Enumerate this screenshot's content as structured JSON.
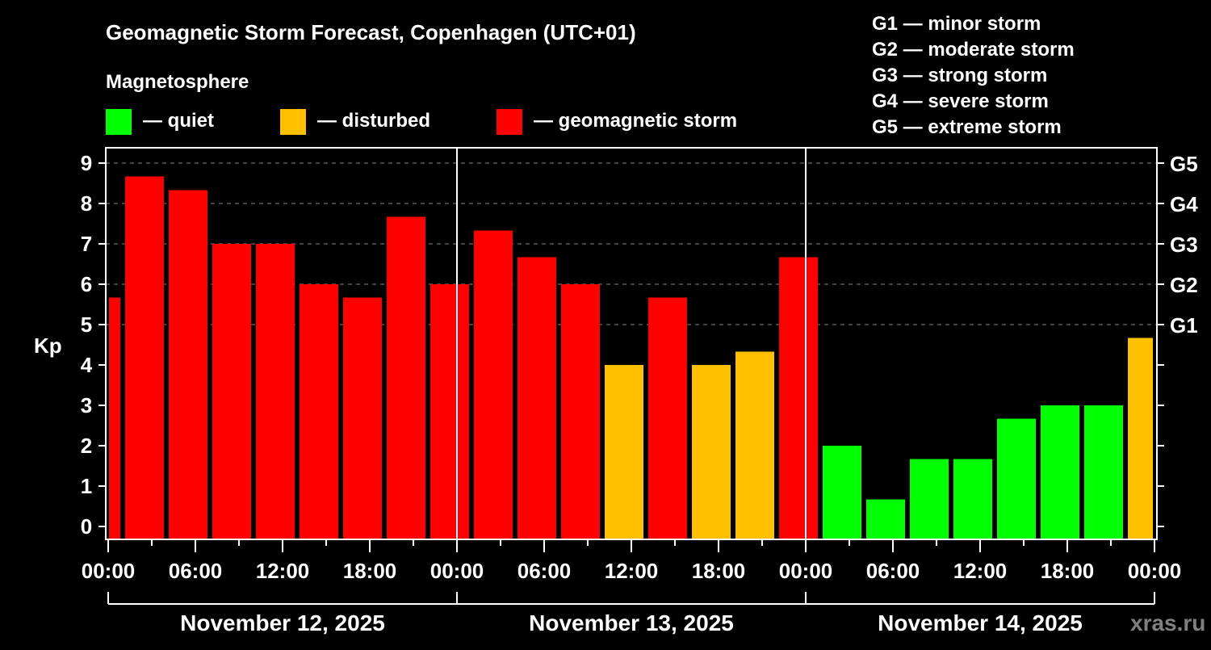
{
  "chart_data": {
    "type": "bar",
    "title": "Geomagnetic Storm Forecast, Copenhagen (UTC+01)",
    "legend_title": "Magnetosphere",
    "legend": [
      {
        "label": "— quiet",
        "color": "#00ff00"
      },
      {
        "label": "— disturbed",
        "color": "#ffc000"
      },
      {
        "label": "— geomagnetic storm",
        "color": "#ff0000"
      }
    ],
    "storm_scale": [
      "G1 — minor storm",
      "G2 — moderate storm",
      "G3 — strong storm",
      "G4 — severe storm",
      "G5 — extreme storm"
    ],
    "ylabel": "Kp",
    "ylim": [
      0,
      9
    ],
    "yticks": [
      "0",
      "1",
      "2",
      "3",
      "4",
      "5",
      "6",
      "7",
      "8",
      "9"
    ],
    "right_ticks": [
      {
        "kp": 5,
        "label": "G1"
      },
      {
        "kp": 6,
        "label": "G2"
      },
      {
        "kp": 7,
        "label": "G3"
      },
      {
        "kp": 8,
        "label": "G4"
      },
      {
        "kp": 9,
        "label": "G5"
      }
    ],
    "xlim_hours": [
      0,
      72
    ],
    "xticks": [
      {
        "hour": 0,
        "label": "00:00"
      },
      {
        "hour": 6,
        "label": "06:00"
      },
      {
        "hour": 12,
        "label": "12:00"
      },
      {
        "hour": 18,
        "label": "18:00"
      },
      {
        "hour": 24,
        "label": "00:00"
      },
      {
        "hour": 30,
        "label": "06:00"
      },
      {
        "hour": 36,
        "label": "12:00"
      },
      {
        "hour": 42,
        "label": "18:00"
      },
      {
        "hour": 48,
        "label": "00:00"
      },
      {
        "hour": 54,
        "label": "06:00"
      },
      {
        "hour": 60,
        "label": "12:00"
      },
      {
        "hour": 66,
        "label": "18:00"
      },
      {
        "hour": 72,
        "label": "00:00"
      }
    ],
    "days": [
      "November 12, 2025",
      "November 13, 2025",
      "November 14, 2025"
    ],
    "bars": [
      {
        "start": 0,
        "end": 1,
        "kp": 5.67,
        "level": "storm"
      },
      {
        "start": 1,
        "end": 4,
        "kp": 8.67,
        "level": "storm"
      },
      {
        "start": 4,
        "end": 7,
        "kp": 8.33,
        "level": "storm"
      },
      {
        "start": 7,
        "end": 10,
        "kp": 7.0,
        "level": "storm"
      },
      {
        "start": 10,
        "end": 13,
        "kp": 7.0,
        "level": "storm"
      },
      {
        "start": 13,
        "end": 16,
        "kp": 6.0,
        "level": "storm"
      },
      {
        "start": 16,
        "end": 19,
        "kp": 5.67,
        "level": "storm"
      },
      {
        "start": 19,
        "end": 22,
        "kp": 7.67,
        "level": "storm"
      },
      {
        "start": 22,
        "end": 25,
        "kp": 6.0,
        "level": "storm"
      },
      {
        "start": 25,
        "end": 28,
        "kp": 7.33,
        "level": "storm"
      },
      {
        "start": 28,
        "end": 31,
        "kp": 6.67,
        "level": "storm"
      },
      {
        "start": 31,
        "end": 34,
        "kp": 6.0,
        "level": "storm"
      },
      {
        "start": 34,
        "end": 37,
        "kp": 4.0,
        "level": "disturbed"
      },
      {
        "start": 37,
        "end": 40,
        "kp": 5.67,
        "level": "storm"
      },
      {
        "start": 40,
        "end": 43,
        "kp": 4.0,
        "level": "disturbed"
      },
      {
        "start": 43,
        "end": 46,
        "kp": 4.33,
        "level": "disturbed"
      },
      {
        "start": 46,
        "end": 49,
        "kp": 6.67,
        "level": "storm"
      },
      {
        "start": 49,
        "end": 52,
        "kp": 2.0,
        "level": "quiet"
      },
      {
        "start": 52,
        "end": 55,
        "kp": 0.67,
        "level": "quiet"
      },
      {
        "start": 55,
        "end": 58,
        "kp": 1.67,
        "level": "quiet"
      },
      {
        "start": 58,
        "end": 61,
        "kp": 1.67,
        "level": "quiet"
      },
      {
        "start": 61,
        "end": 64,
        "kp": 2.67,
        "level": "quiet"
      },
      {
        "start": 64,
        "end": 67,
        "kp": 3.0,
        "level": "quiet"
      },
      {
        "start": 67,
        "end": 70,
        "kp": 3.0,
        "level": "quiet"
      },
      {
        "start": 70,
        "end": 72,
        "kp": 4.67,
        "level": "disturbed"
      }
    ],
    "colors": {
      "quiet": "#00ff00",
      "disturbed": "#ffc000",
      "storm": "#ff0000"
    },
    "watermark": "xras.ru"
  }
}
